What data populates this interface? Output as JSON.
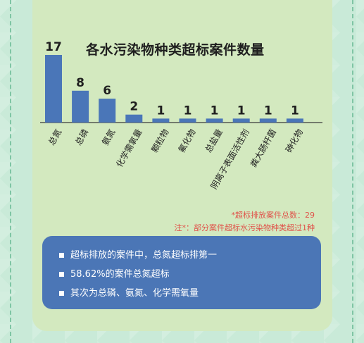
{
  "colors": {
    "bar": "#4a76b8",
    "background": "#c9ead8",
    "card": "#d3e9bf",
    "summary_box": "#4b76b6",
    "note": "#e0524a"
  },
  "chart_data": {
    "type": "bar",
    "title": "各水污染物种类超标案件数量",
    "categories": [
      "总氮",
      "总磷",
      "氨氮",
      "化学需氧量",
      "颗粒物",
      "氟化物",
      "总盐量",
      "阴离子表面活性剂",
      "粪大肠杆菌",
      "砷化物"
    ],
    "values": [
      17,
      8,
      6,
      2,
      1,
      1,
      1,
      1,
      1,
      1
    ],
    "ylim": [
      0,
      17
    ],
    "grid": false,
    "legend": "none"
  },
  "notes": {
    "total": "*超标排放案件总数：29",
    "footnote": "注*：部分案件超标水污染物种类超过1种"
  },
  "summary": {
    "items": [
      "超标排放的案件中，总氮超标排第一",
      "58.62%的案件总氮超标",
      "其次为总磷、氨氮、化学需氧量"
    ]
  }
}
